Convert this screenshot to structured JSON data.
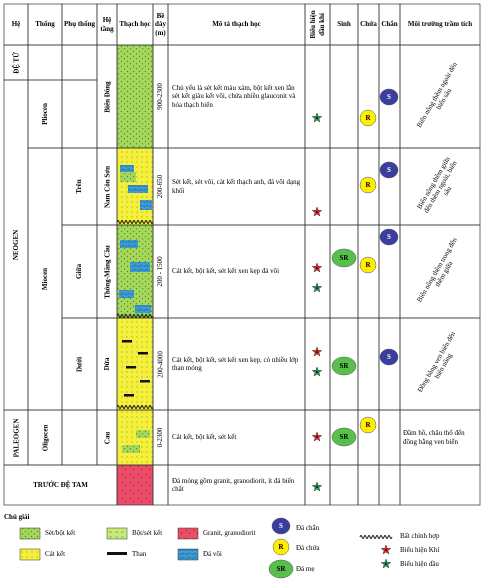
{
  "headers": [
    "Hệ",
    "Thống",
    "Phụ thống",
    "Hệ tầng",
    "Thạch học",
    "Bề dày (m)",
    "Mô tả thạch học",
    "Biểu hiện dầu khí",
    "Sinh",
    "Chứa",
    "Chắn",
    "Môi trường trầm tích"
  ],
  "systems": [
    "ĐỆ TỨ",
    "NEOGEN",
    "PALEOGEN"
  ],
  "series": [
    "Pliocen",
    "Miocen",
    "Oligocen"
  ],
  "subseries": [
    "Trên",
    "Giữa",
    "Dưới"
  ],
  "formations": [
    {
      "name": "Biển Đông",
      "thickness": "900-2300",
      "description": "Chủ yếu là sét kết màu xám, bột kết xen lẫn sét kết giàu kết vôi, chứa nhiều glauconit và hóa thạch biển",
      "environment": "Biển nông thềm ngoài đến biển sâu"
    },
    {
      "name": "Nam Côn Sơn",
      "thickness": "200-650",
      "description": "Sét kết, sét vôi, cát kết thạch anh, đá vôi dạng khối",
      "environment": "Biển nông thềm giữa đến thềm ngoài, biển sâu"
    },
    {
      "name": "Thông-Mãng Cầu",
      "thickness": "200 - 1500",
      "description": "Cát kết, bột kết, sét kết xen kẹp đá vôi",
      "environment": "Biển nông thềm trong đến thềm giữa"
    },
    {
      "name": "Dừa",
      "thickness": "200-4000",
      "description": "Cát kết, bột kết, sét kết xen kẹp, có nhiều lớp than mỏng",
      "environment": "Đồng bằng ven biển đến biển nông"
    },
    {
      "name": "Cau",
      "thickness": "0-2300",
      "description": "Cát kết, bột kết, sét kết",
      "environment": "Đầm hồ, châu thổ đến đồng bằng ven biển"
    }
  ],
  "pre_tertiary": {
    "name": "TRƯỚC ĐỆ TAM",
    "description": "Đá móng gồm granit, granodiorit, ít đá biến chất"
  },
  "badges": {
    "seal": "S",
    "reservoir": "R",
    "source": "SR"
  },
  "legend": {
    "title": "Chú giải",
    "items": [
      "Sét/bột kết",
      "Bột/sét kết",
      "Granit, granodiorit",
      "Cát kết",
      "Than",
      "Đá vôi",
      "Đá chắn",
      "Đá chứa",
      "Đá mẹ",
      "Bất chỉnh hợp",
      "Biểu hiện Khí",
      "Biểu hiện dầu"
    ]
  }
}
